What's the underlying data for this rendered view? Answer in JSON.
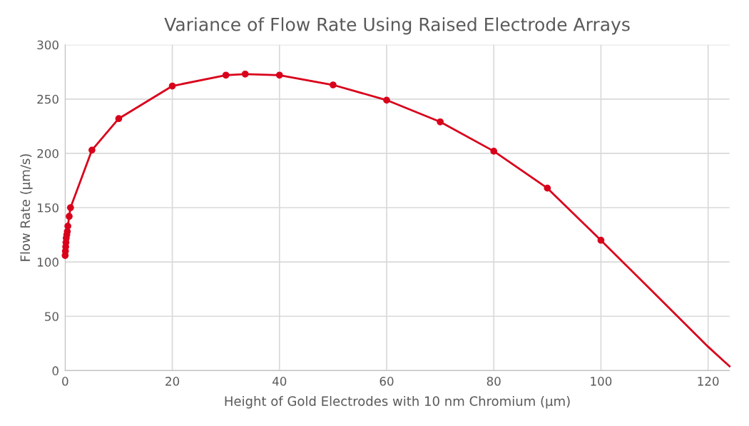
{
  "chart_data": {
    "type": "line",
    "title": "Variance of Flow Rate Using Raised Electrode Arrays",
    "xlabel": "Height of Gold Electrodes with 10 nm Chromium (µm)",
    "ylabel": "Flow Rate (µm/s)",
    "series": [
      {
        "color": "#d9001b",
        "marker": "circle",
        "x": [
          0,
          0.05,
          0.1,
          0.15,
          0.2,
          0.3,
          0.4,
          0.5,
          0.75,
          1,
          5,
          10,
          20,
          30,
          33.6,
          40,
          50,
          60,
          70,
          80,
          90,
          100
        ],
        "values": [
          106,
          110,
          114,
          118,
          122,
          125,
          128,
          133,
          142,
          150,
          203,
          232,
          262,
          272,
          273,
          272,
          263,
          249,
          229,
          202,
          168,
          120
        ]
      },
      {
        "color": "#d9001b",
        "marker": "none",
        "x": [
          100,
          110,
          120,
          124
        ],
        "values": [
          120,
          71,
          22,
          4
        ]
      }
    ],
    "xlim": [
      0,
      124
    ],
    "ylim": [
      0,
      300
    ],
    "xticks": [
      0,
      20,
      40,
      60,
      80,
      100,
      120
    ],
    "yticks": [
      0,
      50,
      100,
      150,
      200,
      250,
      300
    ],
    "grid": true,
    "legend": false
  }
}
